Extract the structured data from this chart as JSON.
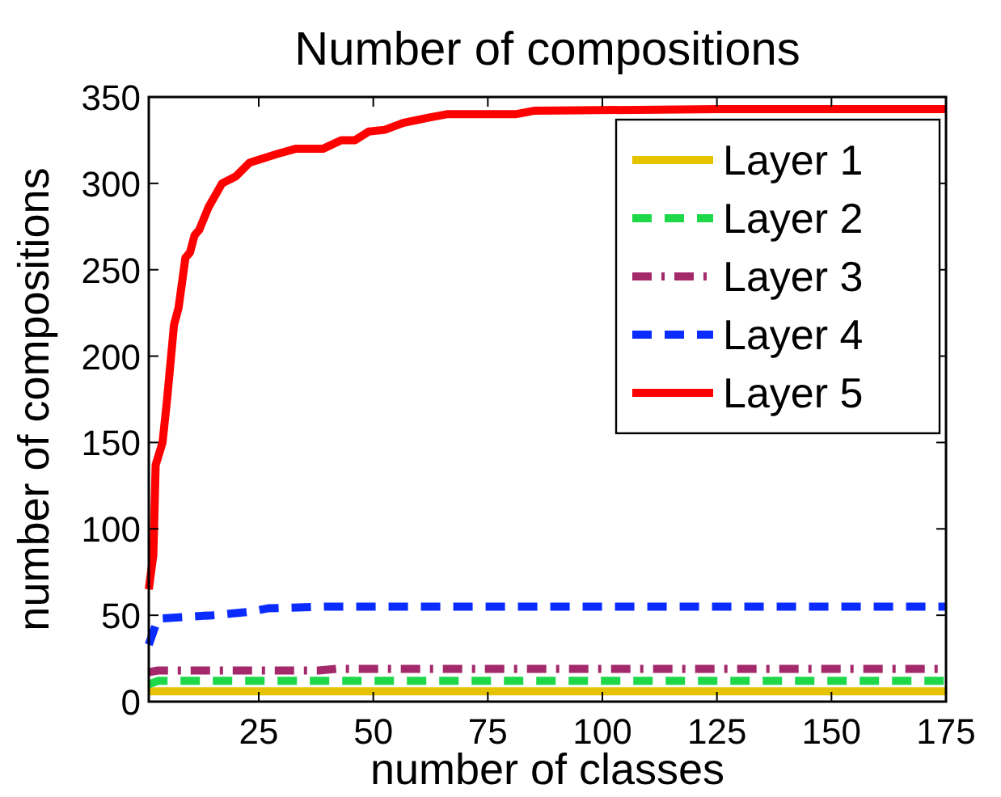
{
  "chart_data": {
    "type": "line",
    "title": "Number of compositions",
    "xlabel": "number of classes",
    "ylabel": "number of compositions",
    "xlim": [
      1,
      175
    ],
    "ylim": [
      0,
      350
    ],
    "xticks": [
      25,
      50,
      75,
      100,
      125,
      150,
      175
    ],
    "yticks": [
      0,
      50,
      100,
      150,
      200,
      250,
      300,
      350
    ],
    "grid": false,
    "legend": "top right",
    "marker": "none",
    "series": [
      {
        "name": "Layer 1",
        "color": "#e6c300",
        "line_style": "solid",
        "x": [
          1,
          175
        ],
        "values": [
          6,
          6
        ]
      },
      {
        "name": "Layer 2",
        "color": "#1fd84a",
        "line_style": "dashed",
        "x": [
          1,
          3,
          175
        ],
        "values": [
          10,
          12,
          12
        ]
      },
      {
        "name": "Layer 3",
        "color": "#a3296b",
        "line_style": "dashdot",
        "x": [
          1,
          3,
          38,
          42,
          175
        ],
        "values": [
          17,
          18,
          18,
          19,
          19
        ]
      },
      {
        "name": "Layer 4",
        "color": "#0a2cff",
        "line_style": "dashed",
        "x": [
          1,
          3,
          15,
          23,
          27,
          40,
          175
        ],
        "values": [
          33,
          48,
          50,
          52,
          54,
          55,
          55
        ]
      },
      {
        "name": "Layer 5",
        "color": "#ff0000",
        "line_style": "solid",
        "x": [
          1,
          2,
          2.5,
          4,
          5,
          6.5,
          7.5,
          9,
          10,
          11,
          12,
          14,
          17,
          20,
          23,
          29,
          33,
          39,
          43,
          46,
          49,
          52.5,
          56.5,
          62,
          66,
          81,
          85,
          125,
          175
        ],
        "values": [
          65,
          85,
          137,
          150,
          175,
          218,
          228,
          257,
          260,
          270,
          273,
          286,
          300,
          304,
          312,
          317,
          320,
          320,
          325,
          325,
          330,
          331,
          335,
          338,
          340,
          340,
          342,
          343,
          343
        ]
      }
    ]
  }
}
